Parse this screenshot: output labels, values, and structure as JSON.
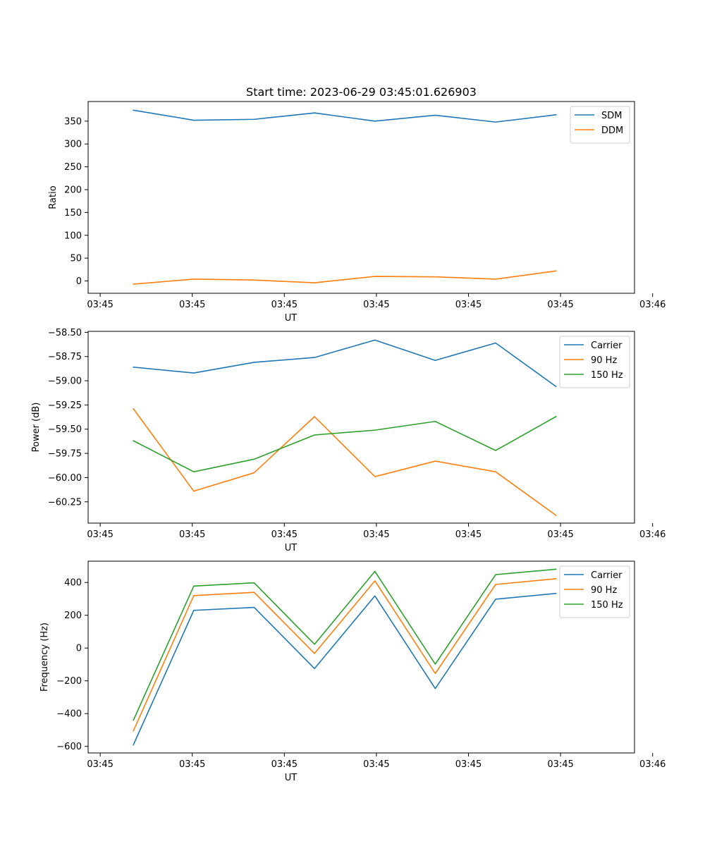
{
  "figure": {
    "title": "Start time: 2023-06-29 03:45:01.626903"
  },
  "chart_data": [
    {
      "type": "line",
      "x": [
        1,
        2,
        3,
        4,
        5,
        6,
        7,
        8
      ],
      "xlim": [
        0.25,
        9.3
      ],
      "xticks": [
        0.45,
        1.975,
        3.5,
        5.025,
        6.55,
        8.075,
        9.6
      ],
      "xtick_labels": [
        "03:45",
        "03:45",
        "03:45",
        "03:45",
        "03:45",
        "03:45",
        "03:46"
      ],
      "xlabel": "UT",
      "ylabel": "Ratio",
      "ylim": [
        -27,
        393
      ],
      "yticks": [
        0,
        50,
        100,
        150,
        200,
        250,
        300,
        350
      ],
      "ytick_labels": [
        "0",
        "50",
        "100",
        "150",
        "200",
        "250",
        "300",
        "350"
      ],
      "legend": "top-right",
      "series": [
        {
          "name": "SDM",
          "color": "#1f77b4",
          "values": [
            374,
            352,
            354,
            368,
            350,
            363,
            348,
            364
          ]
        },
        {
          "name": "DDM",
          "color": "#ff7f0e",
          "values": [
            -7,
            4,
            2,
            -4,
            10,
            9,
            4,
            22
          ]
        }
      ]
    },
    {
      "type": "line",
      "x": [
        1,
        2,
        3,
        4,
        5,
        6,
        7,
        8
      ],
      "xlim": [
        0.25,
        9.3
      ],
      "xticks": [
        0.45,
        1.975,
        3.5,
        5.025,
        6.55,
        8.075,
        9.6
      ],
      "xtick_labels": [
        "03:45",
        "03:45",
        "03:45",
        "03:45",
        "03:45",
        "03:45",
        "03:46"
      ],
      "xlabel": "UT",
      "ylabel": "Power (dB)",
      "ylim": [
        -60.47,
        -58.49
      ],
      "yticks": [
        -58.5,
        -58.75,
        -59.0,
        -59.25,
        -59.5,
        -59.75,
        -60.0,
        -60.25
      ],
      "ytick_labels": [
        "−58.50",
        "−58.75",
        "−59.00",
        "−59.25",
        "−59.50",
        "−59.75",
        "−60.00",
        "−60.25"
      ],
      "legend": "top-right",
      "series": [
        {
          "name": "Carrier",
          "color": "#1f77b4",
          "values": [
            -58.86,
            -58.92,
            -58.81,
            -58.76,
            -58.58,
            -58.79,
            -58.61,
            -59.06
          ]
        },
        {
          "name": "90 Hz",
          "color": "#ff7f0e",
          "values": [
            -59.29,
            -60.14,
            -59.95,
            -59.37,
            -59.99,
            -59.83,
            -59.94,
            -60.39
          ]
        },
        {
          "name": "150 Hz",
          "color": "#2ca02c",
          "values": [
            -59.62,
            -59.94,
            -59.81,
            -59.56,
            -59.51,
            -59.42,
            -59.72,
            -59.37
          ]
        }
      ]
    },
    {
      "type": "line",
      "x": [
        1,
        2,
        3,
        4,
        5,
        6,
        7,
        8
      ],
      "xlim": [
        0.25,
        9.3
      ],
      "xticks": [
        0.45,
        1.975,
        3.5,
        5.025,
        6.55,
        8.075,
        9.6
      ],
      "xtick_labels": [
        "03:45",
        "03:45",
        "03:45",
        "03:45",
        "03:45",
        "03:45",
        "03:46"
      ],
      "xlabel": "UT",
      "ylabel": "Frequency (Hz)",
      "ylim": [
        -640,
        530
      ],
      "yticks": [
        400,
        200,
        0,
        -200,
        -400,
        -600
      ],
      "ytick_labels": [
        "400",
        "200",
        "0",
        "−200",
        "−400",
        "−600"
      ],
      "legend": "top-right",
      "series": [
        {
          "name": "Carrier",
          "color": "#1f77b4",
          "values": [
            -590,
            230,
            248,
            -125,
            318,
            -247,
            298,
            333
          ]
        },
        {
          "name": "90 Hz",
          "color": "#ff7f0e",
          "values": [
            -505,
            320,
            340,
            -33,
            410,
            -155,
            388,
            423
          ]
        },
        {
          "name": "150 Hz",
          "color": "#2ca02c",
          "values": [
            -440,
            378,
            398,
            23,
            468,
            -98,
            448,
            481
          ]
        }
      ]
    }
  ]
}
